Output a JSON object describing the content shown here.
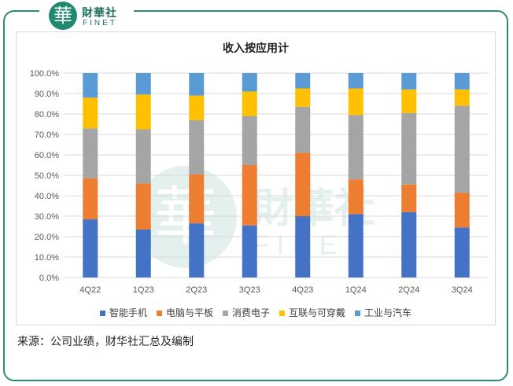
{
  "brand": {
    "seal": "華",
    "name_cn": "財華社",
    "name_en": "FINET"
  },
  "chart_data": {
    "type": "bar",
    "stacked": true,
    "title": "收入按应用计",
    "categories": [
      "4Q22",
      "1Q23",
      "2Q23",
      "3Q23",
      "4Q23",
      "1Q24",
      "2Q24",
      "3Q24"
    ],
    "y_ticks": [
      "0.0%",
      "10.0%",
      "20.0%",
      "30.0%",
      "40.0%",
      "50.0%",
      "60.0%",
      "70.0%",
      "80.0%",
      "90.0%",
      "100.0%"
    ],
    "ylim": [
      0,
      100
    ],
    "grid": true,
    "legend_position": "bottom",
    "series": [
      {
        "name": "智能手机",
        "color": "#4472c4",
        "values": [
          28.5,
          23.5,
          26.5,
          25.5,
          30.0,
          31.0,
          32.0,
          24.5
        ]
      },
      {
        "name": "电脑与平板",
        "color": "#ed7d31",
        "values": [
          20.0,
          22.5,
          24.0,
          29.5,
          31.0,
          17.0,
          13.5,
          17.0
        ]
      },
      {
        "name": "消费电子",
        "color": "#a5a5a5",
        "values": [
          24.5,
          26.5,
          26.5,
          24.0,
          22.5,
          31.5,
          35.0,
          42.5
        ]
      },
      {
        "name": "互联与可穿戴",
        "color": "#ffc000",
        "values": [
          15.0,
          17.0,
          12.0,
          12.0,
          9.0,
          13.0,
          11.5,
          8.0
        ]
      },
      {
        "name": "工业与汽车",
        "color": "#5b9bd5",
        "values": [
          12.0,
          10.5,
          11.0,
          9.0,
          7.5,
          7.5,
          8.0,
          8.0
        ]
      }
    ]
  },
  "source_text": "来源：公司业绩，财华社汇总及编制"
}
